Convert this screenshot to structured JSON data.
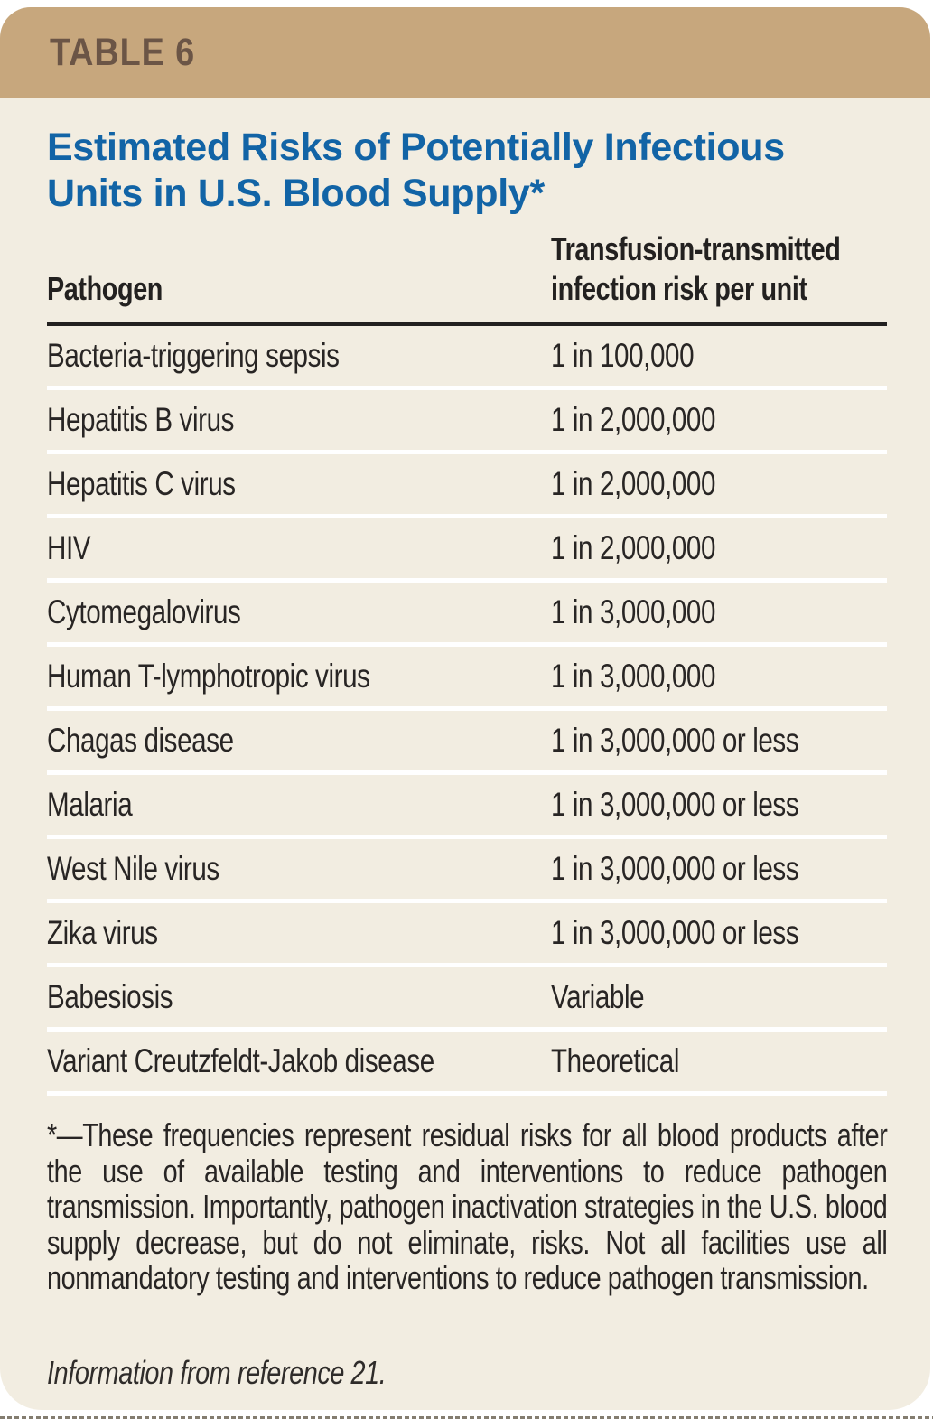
{
  "header": {
    "label": "TABLE 6"
  },
  "title": {
    "line1": "Estimated Risks of Potentially Infectious",
    "line2": "Units in U.S. Blood Supply*"
  },
  "columns": {
    "pathogen": "Pathogen",
    "risk": "Transfusion-transmitted infection risk per unit"
  },
  "rows": [
    {
      "pathogen": "Bacteria-triggering sepsis",
      "risk": "1 in 100,000"
    },
    {
      "pathogen": "Hepatitis B virus",
      "risk": "1 in 2,000,000"
    },
    {
      "pathogen": "Hepatitis C virus",
      "risk": "1 in 2,000,000"
    },
    {
      "pathogen": "HIV",
      "risk": "1 in 2,000,000"
    },
    {
      "pathogen": "Cytomegalovirus",
      "risk": "1 in 3,000,000"
    },
    {
      "pathogen": "Human T-lymphotropic virus",
      "risk": "1 in 3,000,000"
    },
    {
      "pathogen": "Chagas disease",
      "risk": "1 in 3,000,000 or less"
    },
    {
      "pathogen": "Malaria",
      "risk": "1 in 3,000,000 or less"
    },
    {
      "pathogen": "West Nile virus",
      "risk": "1 in 3,000,000 or less"
    },
    {
      "pathogen": "Zika virus",
      "risk": "1 in 3,000,000 or less"
    },
    {
      "pathogen": "Babesiosis",
      "risk": "Variable"
    },
    {
      "pathogen": "Variant Creutzfeldt-Jakob disease",
      "risk": "Theoretical"
    }
  ],
  "footnote": "*—These frequencies represent residual risks for all blood products after the use of available testing and interventions to reduce pathogen transmission. Importantly, pathogen inactivation strategies in the U.S. blood supply decrease, but do not eliminate, risks. Not all facilities use all nonmandatory testing and interventions to reduce pathogen transmission.",
  "source": "Information from reference 21.",
  "colors": {
    "band": "#c7a77d",
    "band_text": "#6b5546",
    "card_background": "#f2ede1",
    "title_blue": "#1264a6",
    "body_text": "#282524",
    "header_rule": "#232120",
    "row_separator": "#ffffff"
  }
}
